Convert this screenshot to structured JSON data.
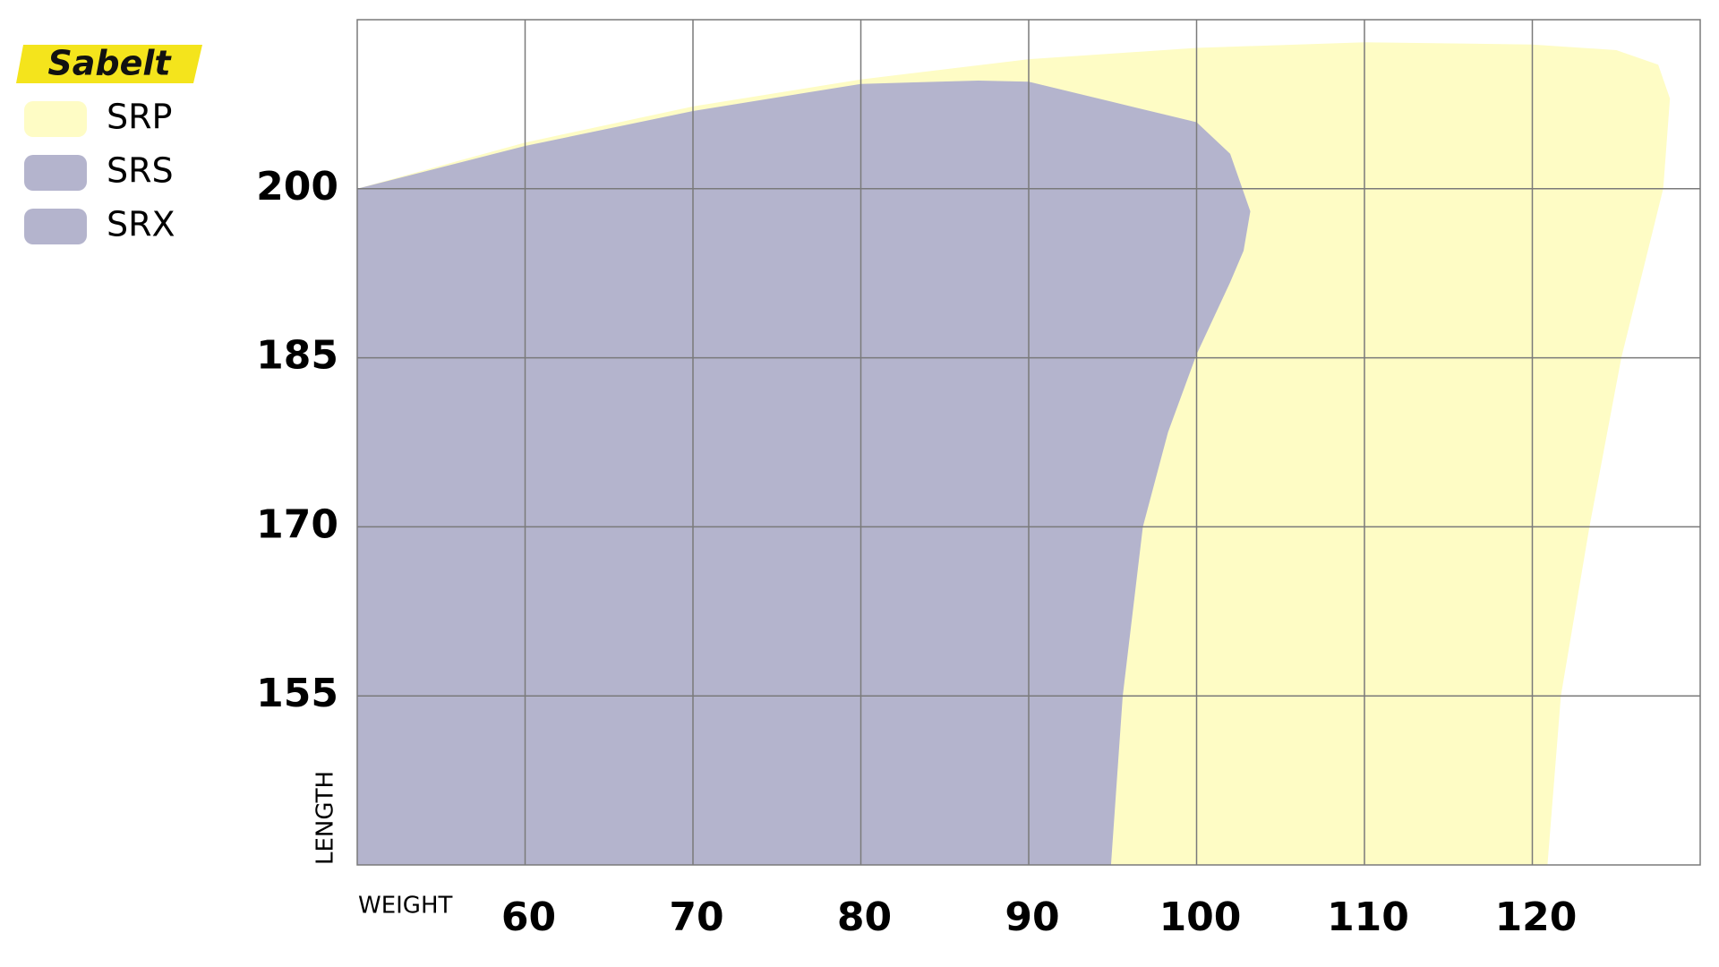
{
  "logo": "Sabelt",
  "chart_data": {
    "type": "area",
    "x_label": "WEIGHT",
    "y_label": "LENGTH",
    "xlim": [
      50,
      130
    ],
    "ylim": [
      140,
      215
    ],
    "xticks": [
      60,
      70,
      80,
      90,
      100,
      110,
      120
    ],
    "yticks": [
      155,
      170,
      185,
      200
    ],
    "grid": true,
    "series": [
      {
        "name": "SRP",
        "color": "#fefcc5",
        "x": [
          50,
          50,
          60,
          70,
          80,
          90,
          100,
          110,
          120,
          125,
          127.5,
          128.2,
          127.8,
          125.3,
          123.4,
          121.7,
          120.9
        ],
        "values": [
          140,
          200,
          204.1,
          207.3,
          209.7,
          211.5,
          212.5,
          213,
          212.8,
          212.3,
          211,
          208,
          200,
          185,
          170,
          155,
          140
        ]
      },
      {
        "name": "SRS",
        "color": "#b4b4cd",
        "x": [
          50,
          50,
          60,
          70,
          80,
          87,
          90,
          95,
          100,
          102,
          103.2,
          102.8,
          102,
          100,
          98.3,
          96.8,
          95.6,
          94.9
        ],
        "values": [
          140,
          200,
          203.8,
          206.9,
          209.3,
          209.6,
          209.5,
          207.7,
          205.9,
          203.1,
          198,
          194.5,
          191.7,
          185.3,
          178.4,
          170,
          155,
          140
        ]
      },
      {
        "name": "SRX",
        "color": "#b4b4cd"
      }
    ]
  }
}
